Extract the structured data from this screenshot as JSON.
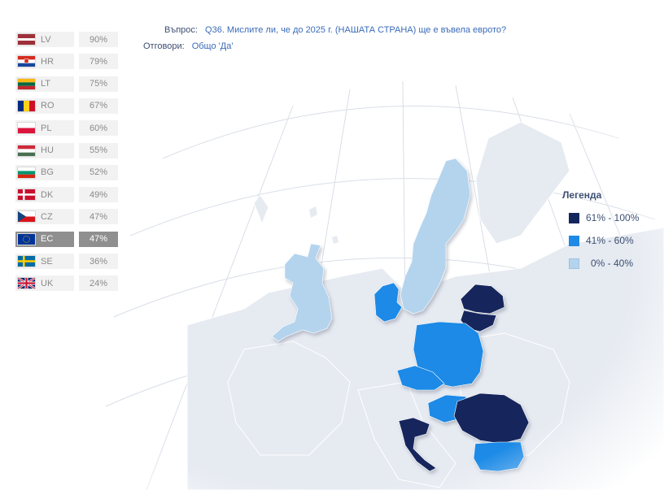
{
  "question": {
    "label": "Въпрос:",
    "text": "Q36. Мислите ли, че до 2025 г. (НАШАТА СТРАНА) ще е въвела еврото?",
    "answers_label": "Отговори:",
    "answers_text": "Общо 'Да'"
  },
  "ranking": [
    {
      "code": "LV",
      "value": "90%",
      "highlight": false
    },
    {
      "code": "HR",
      "value": "79%",
      "highlight": false
    },
    {
      "code": "LT",
      "value": "75%",
      "highlight": false
    },
    {
      "code": "RO",
      "value": "67%",
      "highlight": false
    },
    {
      "code": "PL",
      "value": "60%",
      "highlight": false
    },
    {
      "code": "HU",
      "value": "55%",
      "highlight": false
    },
    {
      "code": "BG",
      "value": "52%",
      "highlight": false
    },
    {
      "code": "DK",
      "value": "49%",
      "highlight": false
    },
    {
      "code": "CZ",
      "value": "47%",
      "highlight": false
    },
    {
      "code": "EC",
      "value": "47%",
      "highlight": true
    },
    {
      "code": "SE",
      "value": "36%",
      "highlight": false
    },
    {
      "code": "UK",
      "value": "24%",
      "highlight": false
    }
  ],
  "legend": {
    "title": "Легенда",
    "items": [
      {
        "label": "61% - 100%",
        "color": "#14275c"
      },
      {
        "label": "41% - 60%",
        "color": "#1e8ae6"
      },
      {
        "label": "0% - 40%",
        "color": "#b4d4ee"
      }
    ]
  },
  "colors": {
    "land": "#e6eaf1",
    "sea": "#ffffff",
    "grid": "#d7dde6",
    "high": "#14275c",
    "mid": "#1e8ae6",
    "low": "#b4d4ee"
  }
}
